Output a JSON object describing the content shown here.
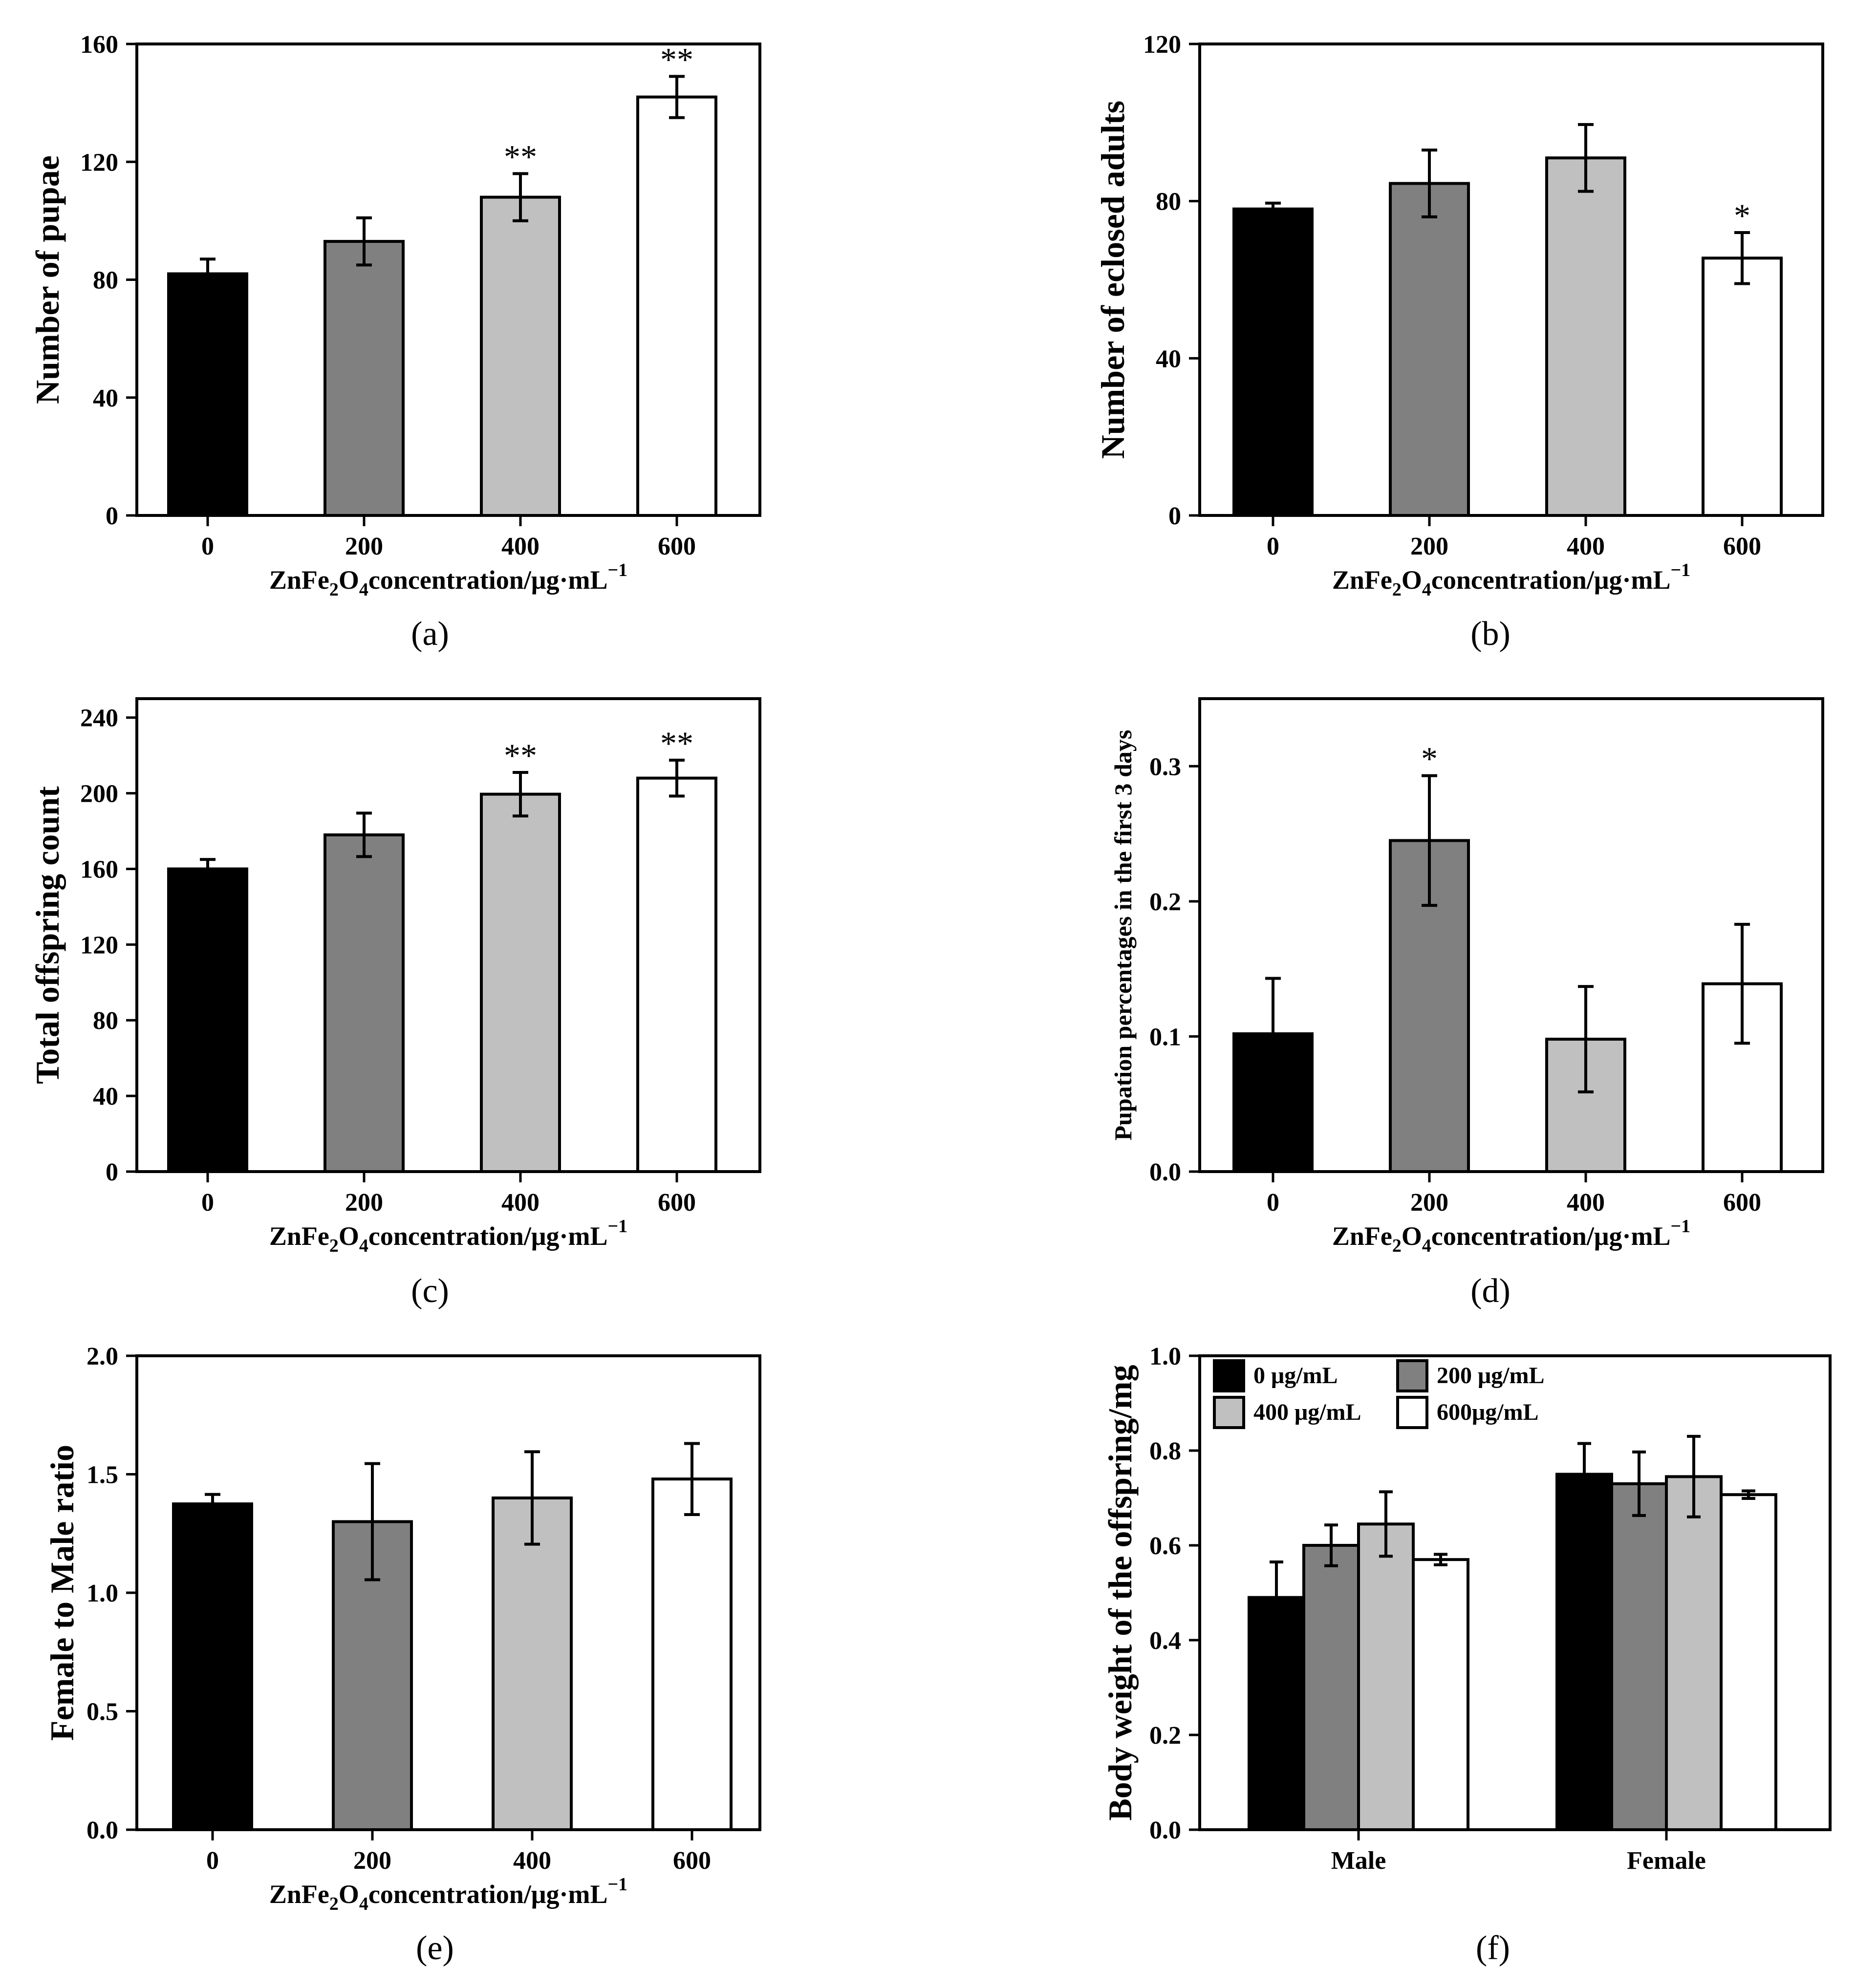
{
  "chart_data": [
    {
      "panel": "(a)",
      "type": "bar",
      "categories": [
        "0",
        "200",
        "400",
        "600"
      ],
      "values": [
        82,
        93,
        108,
        142
      ],
      "errors": [
        5,
        8,
        8,
        7
      ],
      "annotations": [
        "",
        "",
        "**",
        "**"
      ],
      "ylabel": "Number of pupae",
      "xlabel": {
        "pre": "ZnFe",
        "sub1": "2",
        "mid": "O",
        "sub2": "4",
        "post": "concentration/μg·mL",
        "sup": "−1"
      },
      "ylim": [
        0,
        160
      ],
      "yticks": [
        "0",
        "40",
        "80",
        "120",
        "160"
      ],
      "colors": [
        "#000000",
        "#808080",
        "#c0c0c0",
        "#ffffff"
      ]
    },
    {
      "panel": "(b)",
      "type": "bar",
      "categories": [
        "0",
        "200",
        "400",
        "600"
      ],
      "values": [
        78,
        84.5,
        91,
        65.5
      ],
      "errors": [
        1.5,
        8.5,
        8.5,
        6.5
      ],
      "annotations": [
        "",
        "",
        "",
        "*"
      ],
      "ylabel": "Number of eclosed adults",
      "xlabel": {
        "pre": "ZnFe",
        "sub1": "2",
        "mid": "O",
        "sub2": "4",
        "post": "concentration/μg·mL",
        "sup": "−1"
      },
      "ylim": [
        0,
        120
      ],
      "yticks": [
        "0",
        "40",
        "80",
        "120"
      ],
      "colors": [
        "#000000",
        "#808080",
        "#c0c0c0",
        "#ffffff"
      ]
    },
    {
      "panel": "(c)",
      "type": "bar",
      "categories": [
        "0",
        "200",
        "400",
        "600"
      ],
      "values": [
        160,
        178,
        199.5,
        208
      ],
      "errors": [
        5,
        11.5,
        11.5,
        9.5
      ],
      "annotations": [
        "",
        "",
        "**",
        "**"
      ],
      "ylabel": "Total offspring count",
      "xlabel": {
        "pre": "ZnFe",
        "sub1": "2",
        "mid": "O",
        "sub2": "4",
        "post": "concentration/μg·mL",
        "sup": "−1"
      },
      "ylim": [
        0,
        250
      ],
      "yticks": [
        "0",
        "40",
        "80",
        "120",
        "160",
        "200",
        "240"
      ],
      "colors": [
        "#000000",
        "#808080",
        "#c0c0c0",
        "#ffffff"
      ]
    },
    {
      "panel": "(d)",
      "type": "bar",
      "categories": [
        "0",
        "200",
        "400",
        "600"
      ],
      "values": [
        0.102,
        0.245,
        0.098,
        0.139
      ],
      "errors": [
        0.041,
        0.048,
        0.039,
        0.044
      ],
      "annotations": [
        "",
        "*",
        "",
        ""
      ],
      "ylabel": "Pupation percentages in the first 3 days",
      "xlabel": {
        "pre": "ZnFe",
        "sub1": "2",
        "mid": "O",
        "sub2": "4",
        "post": "concentration/μg·mL",
        "sup": "−1"
      },
      "ylim": [
        0,
        0.35
      ],
      "yticks": [
        "0.0",
        "0.1",
        "0.2",
        "0.3"
      ],
      "colors": [
        "#000000",
        "#808080",
        "#c0c0c0",
        "#ffffff"
      ]
    },
    {
      "panel": "(e)",
      "type": "bar",
      "categories": [
        "0",
        "200",
        "400",
        "600"
      ],
      "values": [
        1.375,
        1.3,
        1.4,
        1.48
      ],
      "errors": [
        0.04,
        0.245,
        0.195,
        0.15
      ],
      "annotations": [
        "",
        "",
        "",
        ""
      ],
      "ylabel": "Female to Male ratio",
      "xlabel": {
        "pre": "ZnFe",
        "sub1": "2",
        "mid": "O",
        "sub2": "4",
        "post": "concentration/μg·mL",
        "sup": "−1"
      },
      "ylim": [
        0,
        2.0
      ],
      "yticks": [
        "0.0",
        "0.5",
        "1.0",
        "1.5",
        "2.0"
      ],
      "colors": [
        "#000000",
        "#808080",
        "#c0c0c0",
        "#ffffff"
      ]
    },
    {
      "panel": "(f)",
      "type": "bar",
      "grouped": true,
      "categories": [
        "Male",
        "Female"
      ],
      "series": [
        {
          "name": "0 μg/mL",
          "values": [
            0.49,
            0.75
          ],
          "errors": [
            0.075,
            0.065
          ],
          "color": "#000000"
        },
        {
          "name": "200 μg/mL",
          "values": [
            0.6,
            0.73
          ],
          "errors": [
            0.043,
            0.067
          ],
          "color": "#808080"
        },
        {
          "name": "400 μg/mL",
          "values": [
            0.645,
            0.745
          ],
          "errors": [
            0.068,
            0.085
          ],
          "color": "#c0c0c0"
        },
        {
          "name": "600μg/mL",
          "values": [
            0.57,
            0.707
          ],
          "errors": [
            0.011,
            0.008
          ],
          "color": "#ffffff"
        }
      ],
      "ylabel": "Body weight of the offspring/mg",
      "ylim": [
        0,
        1.0
      ],
      "yticks": [
        "0.0",
        "0.2",
        "0.4",
        "0.6",
        "0.8",
        "1.0"
      ],
      "legend_position": "top-left"
    }
  ]
}
